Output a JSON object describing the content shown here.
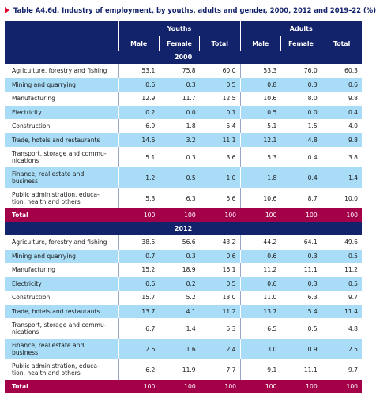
{
  "title": "Table A4.6d. Industry of employment, by youths, adults and gender, 2000, 2012 and 2019–22 (%)",
  "groups": [
    "Youths",
    "Adults"
  ],
  "columns": [
    "Male",
    "Female",
    "Total",
    "Male",
    "Female",
    "Total"
  ],
  "sections": [
    {
      "year": "2000",
      "rows": [
        {
          "label": "Agriculture, forestry and fishing",
          "values": [
            "53.1",
            "75.8",
            "60.0",
            "53.3",
            "76.0",
            "60.3"
          ]
        },
        {
          "label": "Mining and quarrying",
          "values": [
            "0.6",
            "0.3",
            "0.5",
            "0.8",
            "0.3",
            "0.6"
          ]
        },
        {
          "label": "Manufacturing",
          "values": [
            "12.9",
            "11.7",
            "12.5",
            "10.6",
            "8.0",
            "9.8"
          ]
        },
        {
          "label": "Electricity",
          "values": [
            "0.2",
            "0.0",
            "0.1",
            "0.5",
            "0.0",
            "0.4"
          ]
        },
        {
          "label": "Construction",
          "values": [
            "6.9",
            "1.8",
            "5.4",
            "5.1",
            "1.5",
            "4.0"
          ]
        },
        {
          "label": "Trade, hotels and restaurants",
          "values": [
            "14.6",
            "3.2",
            "11.1",
            "12.1",
            "4.8",
            "9.8"
          ]
        },
        {
          "label": "Transport, storage and commu-",
          "label2": "nications",
          "values": [
            "5.1",
            "0.3",
            "3.6",
            "5.3",
            "0.4",
            "3.8"
          ]
        },
        {
          "label": "Finance, real estate and",
          "label2": "business",
          "values": [
            "1.2",
            "0.5",
            "1.0",
            "1.8",
            "0.4",
            "1.4"
          ]
        },
        {
          "label": "Public administration, educa-",
          "label2": "tion, health and others",
          "values": [
            "5.3",
            "6.3",
            "5.6",
            "10.6",
            "8.7",
            "10.0"
          ]
        }
      ],
      "total": {
        "label": "Total",
        "values": [
          "100",
          "100",
          "100",
          "100",
          "100",
          "100"
        ]
      }
    },
    {
      "year": "2012",
      "rows": [
        {
          "label": "Agriculture, forestry and fishing",
          "values": [
            "38.5",
            "56.6",
            "43.2",
            "44.2",
            "64.1",
            "49.6"
          ]
        },
        {
          "label": "Mining and quarrying",
          "values": [
            "0.7",
            "0.3",
            "0.6",
            "0.6",
            "0.3",
            "0.5"
          ]
        },
        {
          "label": "Manufacturing",
          "values": [
            "15.2",
            "18.9",
            "16.1",
            "11.2",
            "11.1",
            "11.2"
          ]
        },
        {
          "label": "Electricity",
          "values": [
            "0.6",
            "0.2",
            "0.5",
            "0.6",
            "0.3",
            "0.5"
          ]
        },
        {
          "label": "Construction",
          "values": [
            "15.7",
            "5.2",
            "13.0",
            "11.0",
            "6.3",
            "9.7"
          ]
        },
        {
          "label": "Trade, hotels and restaurants",
          "values": [
            "13.7",
            "4.1",
            "11.2",
            "13.7",
            "5.4",
            "11.4"
          ]
        },
        {
          "label": "Transport, storage and commu-",
          "label2": "nications",
          "values": [
            "6.7",
            "1.4",
            "5.3",
            "6.5",
            "0.5",
            "4.8"
          ]
        },
        {
          "label": "Finance, real estate and",
          "label2": "business",
          "values": [
            "2.6",
            "1.6",
            "2.4",
            "3.0",
            "0.9",
            "2.5"
          ]
        },
        {
          "label": "Public administration, educa-",
          "label2": "tion, health and others",
          "values": [
            "6.2",
            "11.9",
            "7.7",
            "9.1",
            "11.1",
            "9.7"
          ]
        }
      ],
      "total": {
        "label": "Total",
        "values": [
          "100",
          "100",
          "100",
          "100",
          "100",
          "100"
        ]
      }
    }
  ]
}
